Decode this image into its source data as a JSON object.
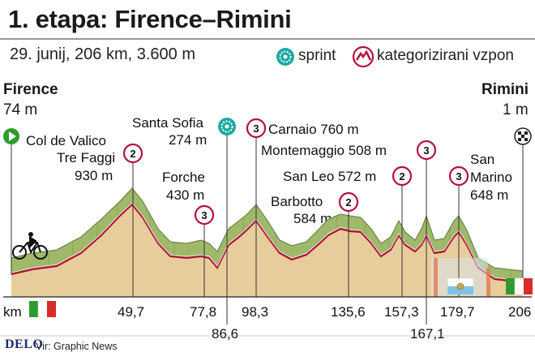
{
  "title": "1. etapa: Firence–Rimini",
  "subtitle": "29. junij, 206 km, 3.600 m",
  "legend": {
    "sprint": "sprint",
    "climb": "kategorizirani vzpon"
  },
  "start": {
    "name": "Firence",
    "altitude": "74 m"
  },
  "finish": {
    "name": "Rimini",
    "altitude": "1 m"
  },
  "km_label": "km",
  "points": [
    {
      "name": "Col de Valico Tre Faggi",
      "line1": "Col de Valico",
      "line2": "Tre Faggi",
      "altitude": "930 m",
      "category": "2",
      "km": "49,7"
    },
    {
      "name": "Forche",
      "line1": "Forche",
      "altitude": "430 m",
      "category": "3",
      "km": "77,8"
    },
    {
      "name": "Santa Sofia",
      "line1": "Santa Sofia",
      "altitude": "274 m",
      "category": "sprint",
      "km": "86,6"
    },
    {
      "name": "Carnaio",
      "line1": "Carnaio 760 m",
      "category": "3",
      "km": "98,3"
    },
    {
      "name": "Montemaggio",
      "line1": "Montemaggio 508 m",
      "category": "3",
      "km": "167,1"
    },
    {
      "name": "San Leo",
      "line1": "San Leo 572 m",
      "category": "2",
      "km": "157,3"
    },
    {
      "name": "Barbotto",
      "line1": "Barbotto",
      "altitude": "584 m",
      "category": "2",
      "km": "135,6"
    },
    {
      "name": "San Marino",
      "line1": "San",
      "line2": "Marino",
      "altitude": "648 m",
      "category": "3",
      "km": "179,7"
    }
  ],
  "km_ticks": [
    "49,7",
    "77,8",
    "86,6",
    "98,3",
    "135,6",
    "157,3",
    "167,1",
    "179,7",
    "206"
  ],
  "brand": "DELO",
  "source": "Vir: Graphic News",
  "colors": {
    "profile_fill": "#e8cd9c",
    "ridge_green": "#9fb86a",
    "ridge_dark": "#5f7a3a",
    "climb_red": "#b3113b",
    "sprint_teal": "#1aa9a2",
    "start_green": "#2e9b2e"
  }
}
